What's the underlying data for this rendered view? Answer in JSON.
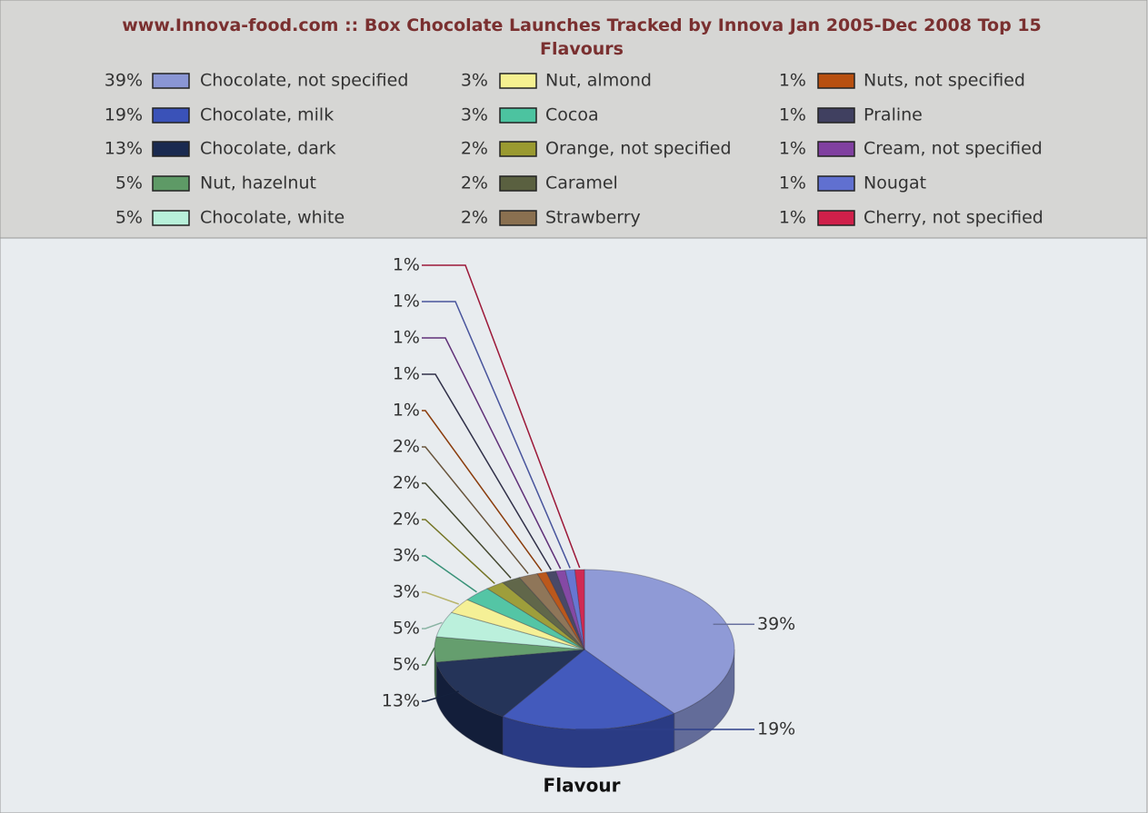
{
  "chart_data": {
    "type": "pie",
    "title": "www.Innova-food.com :: Box Chocolate Launches Tracked by Innova Jan 2005-Dec 2008 Top 15 Flavours",
    "xlabel": "Flavour",
    "categories": [
      "Chocolate, not specified",
      "Chocolate, milk",
      "Chocolate, dark",
      "Nut, hazelnut",
      "Chocolate, white",
      "Nut, almond",
      "Cocoa",
      "Orange, not specified",
      "Caramel",
      "Strawberry",
      "Nuts, not specified",
      "Praline",
      "Cream, not specified",
      "Nougat",
      "Cherry, not specified"
    ],
    "values": [
      39,
      19,
      13,
      5,
      5,
      3,
      3,
      2,
      2,
      2,
      1,
      1,
      1,
      1,
      1
    ],
    "value_labels": [
      "39%",
      "19%",
      "13%",
      "5%",
      "5%",
      "3%",
      "3%",
      "2%",
      "2%",
      "2%",
      "1%",
      "1%",
      "1%",
      "1%",
      "1%"
    ],
    "colors": [
      "#8a96d4",
      "#3a52b8",
      "#1a2a50",
      "#5e9a66",
      "#b8f0da",
      "#f5f090",
      "#4cc3a0",
      "#9a9a30",
      "#5a6040",
      "#8a7050",
      "#b85010",
      "#404060",
      "#8040a0",
      "#6070d0",
      "#d0204a"
    ]
  }
}
